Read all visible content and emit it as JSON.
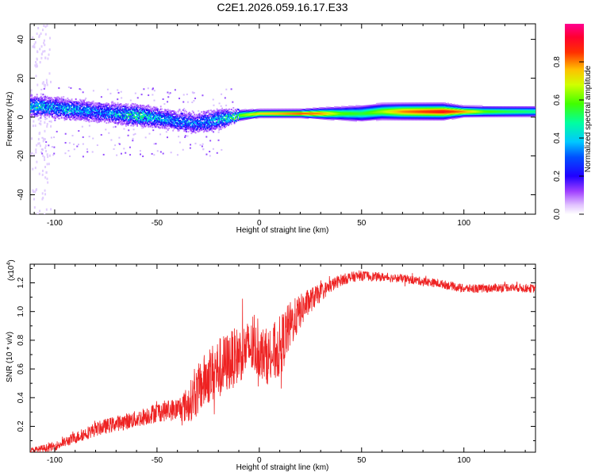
{
  "title": "C2E1.2026.059.16.17.E33",
  "chart_data": [
    {
      "type": "heatmap",
      "name": "spectrogram",
      "xlabel": "Height of straight line (km)",
      "ylabel": "Frequency (Hz)",
      "xlim": [
        -112,
        135
      ],
      "ylim": [
        -50,
        48
      ],
      "x_ticks": [
        -100,
        -50,
        0,
        50,
        100
      ],
      "x_tick_labels": [
        "-100",
        "-50",
        "0",
        "50",
        "100"
      ],
      "y_ticks": [
        -40,
        -20,
        0,
        20,
        40
      ],
      "y_tick_labels": [
        "-40",
        "-20",
        "0",
        "20",
        "40"
      ],
      "colorbar": {
        "label": "Normalized spectral amplitude",
        "range": [
          0,
          1
        ],
        "ticks": [
          0.0,
          0.2,
          0.4,
          0.6,
          0.8
        ],
        "tick_labels": [
          "0.0",
          "0.2",
          "0.4",
          "0.6",
          "0.8"
        ],
        "colormap": [
          "#ffffff",
          "#c080ff",
          "#4000ff",
          "#0000ff",
          "#00c0ff",
          "#00ff80",
          "#80ff00",
          "#ffff00",
          "#ff8000",
          "#ff0000",
          "#ff0080"
        ]
      },
      "ridge": {
        "x": [
          -110,
          -100,
          -90,
          -80,
          -70,
          -60,
          -50,
          -40,
          -30,
          -20,
          -15,
          -10,
          0,
          10,
          20,
          30,
          40,
          50,
          60,
          70,
          80,
          90,
          100,
          110,
          120,
          135
        ],
        "freq": [
          6,
          5,
          4,
          3,
          2,
          1,
          0,
          -2,
          -3,
          -1,
          0,
          1,
          2,
          2,
          2,
          2,
          2,
          2,
          3,
          3,
          3,
          3,
          3,
          3,
          3,
          3
        ],
        "amplitude": [
          0.4,
          0.35,
          0.35,
          0.3,
          0.35,
          0.45,
          0.35,
          0.3,
          0.3,
          0.35,
          0.45,
          0.6,
          0.75,
          0.8,
          0.85,
          0.8,
          0.6,
          0.55,
          0.65,
          0.8,
          0.85,
          0.9,
          0.8,
          0.6,
          0.55,
          0.5
        ],
        "halfwidth_hz": [
          4,
          4,
          4,
          4,
          4,
          4,
          4,
          4,
          4,
          4,
          3,
          2,
          1.5,
          1.5,
          1.5,
          2,
          2.5,
          3,
          3,
          3,
          3,
          3,
          2,
          2,
          2,
          2
        ]
      }
    },
    {
      "type": "line",
      "name": "snr",
      "xlabel": "Height of straight line (km)",
      "ylabel": "SNR (10 * v/v)",
      "scale_label_base": "(x10",
      "scale_label_exp": "4",
      "scale_label_close": ")",
      "xlim": [
        -112,
        135
      ],
      "ylim": [
        0.02,
        1.33
      ],
      "x_ticks": [
        -100,
        -50,
        0,
        50,
        100
      ],
      "x_tick_labels": [
        "-100",
        "-50",
        "0",
        "50",
        "100"
      ],
      "y_ticks": [
        0.2,
        0.4,
        0.6,
        0.8,
        1.0,
        1.2
      ],
      "y_tick_labels": [
        "0.2",
        "0.4",
        "0.6",
        "0.8",
        "1.0",
        "1.2"
      ],
      "color": "#ee2222",
      "envelope": {
        "x": [
          -112,
          -100,
          -90,
          -80,
          -70,
          -60,
          -50,
          -40,
          -35,
          -30,
          -25,
          -20,
          -15,
          -10,
          -5,
          0,
          5,
          10,
          15,
          20,
          25,
          30,
          35,
          40,
          45,
          50,
          60,
          70,
          80,
          90,
          100,
          110,
          120,
          135
        ],
        "y": [
          0.03,
          0.06,
          0.12,
          0.18,
          0.22,
          0.25,
          0.3,
          0.32,
          0.35,
          0.45,
          0.55,
          0.6,
          0.65,
          0.7,
          0.75,
          0.72,
          0.68,
          0.75,
          0.9,
          1.0,
          1.08,
          1.13,
          1.18,
          1.22,
          1.24,
          1.25,
          1.24,
          1.23,
          1.21,
          1.19,
          1.16,
          1.16,
          1.17,
          1.16
        ]
      },
      "noise": {
        "x": [
          -112,
          -80,
          -60,
          -40,
          -30,
          -20,
          -10,
          0,
          10,
          20,
          30,
          40,
          60,
          100,
          135
        ],
        "amplitude": [
          0.02,
          0.05,
          0.06,
          0.08,
          0.18,
          0.22,
          0.2,
          0.18,
          0.22,
          0.12,
          0.06,
          0.04,
          0.03,
          0.03,
          0.03
        ]
      }
    }
  ]
}
